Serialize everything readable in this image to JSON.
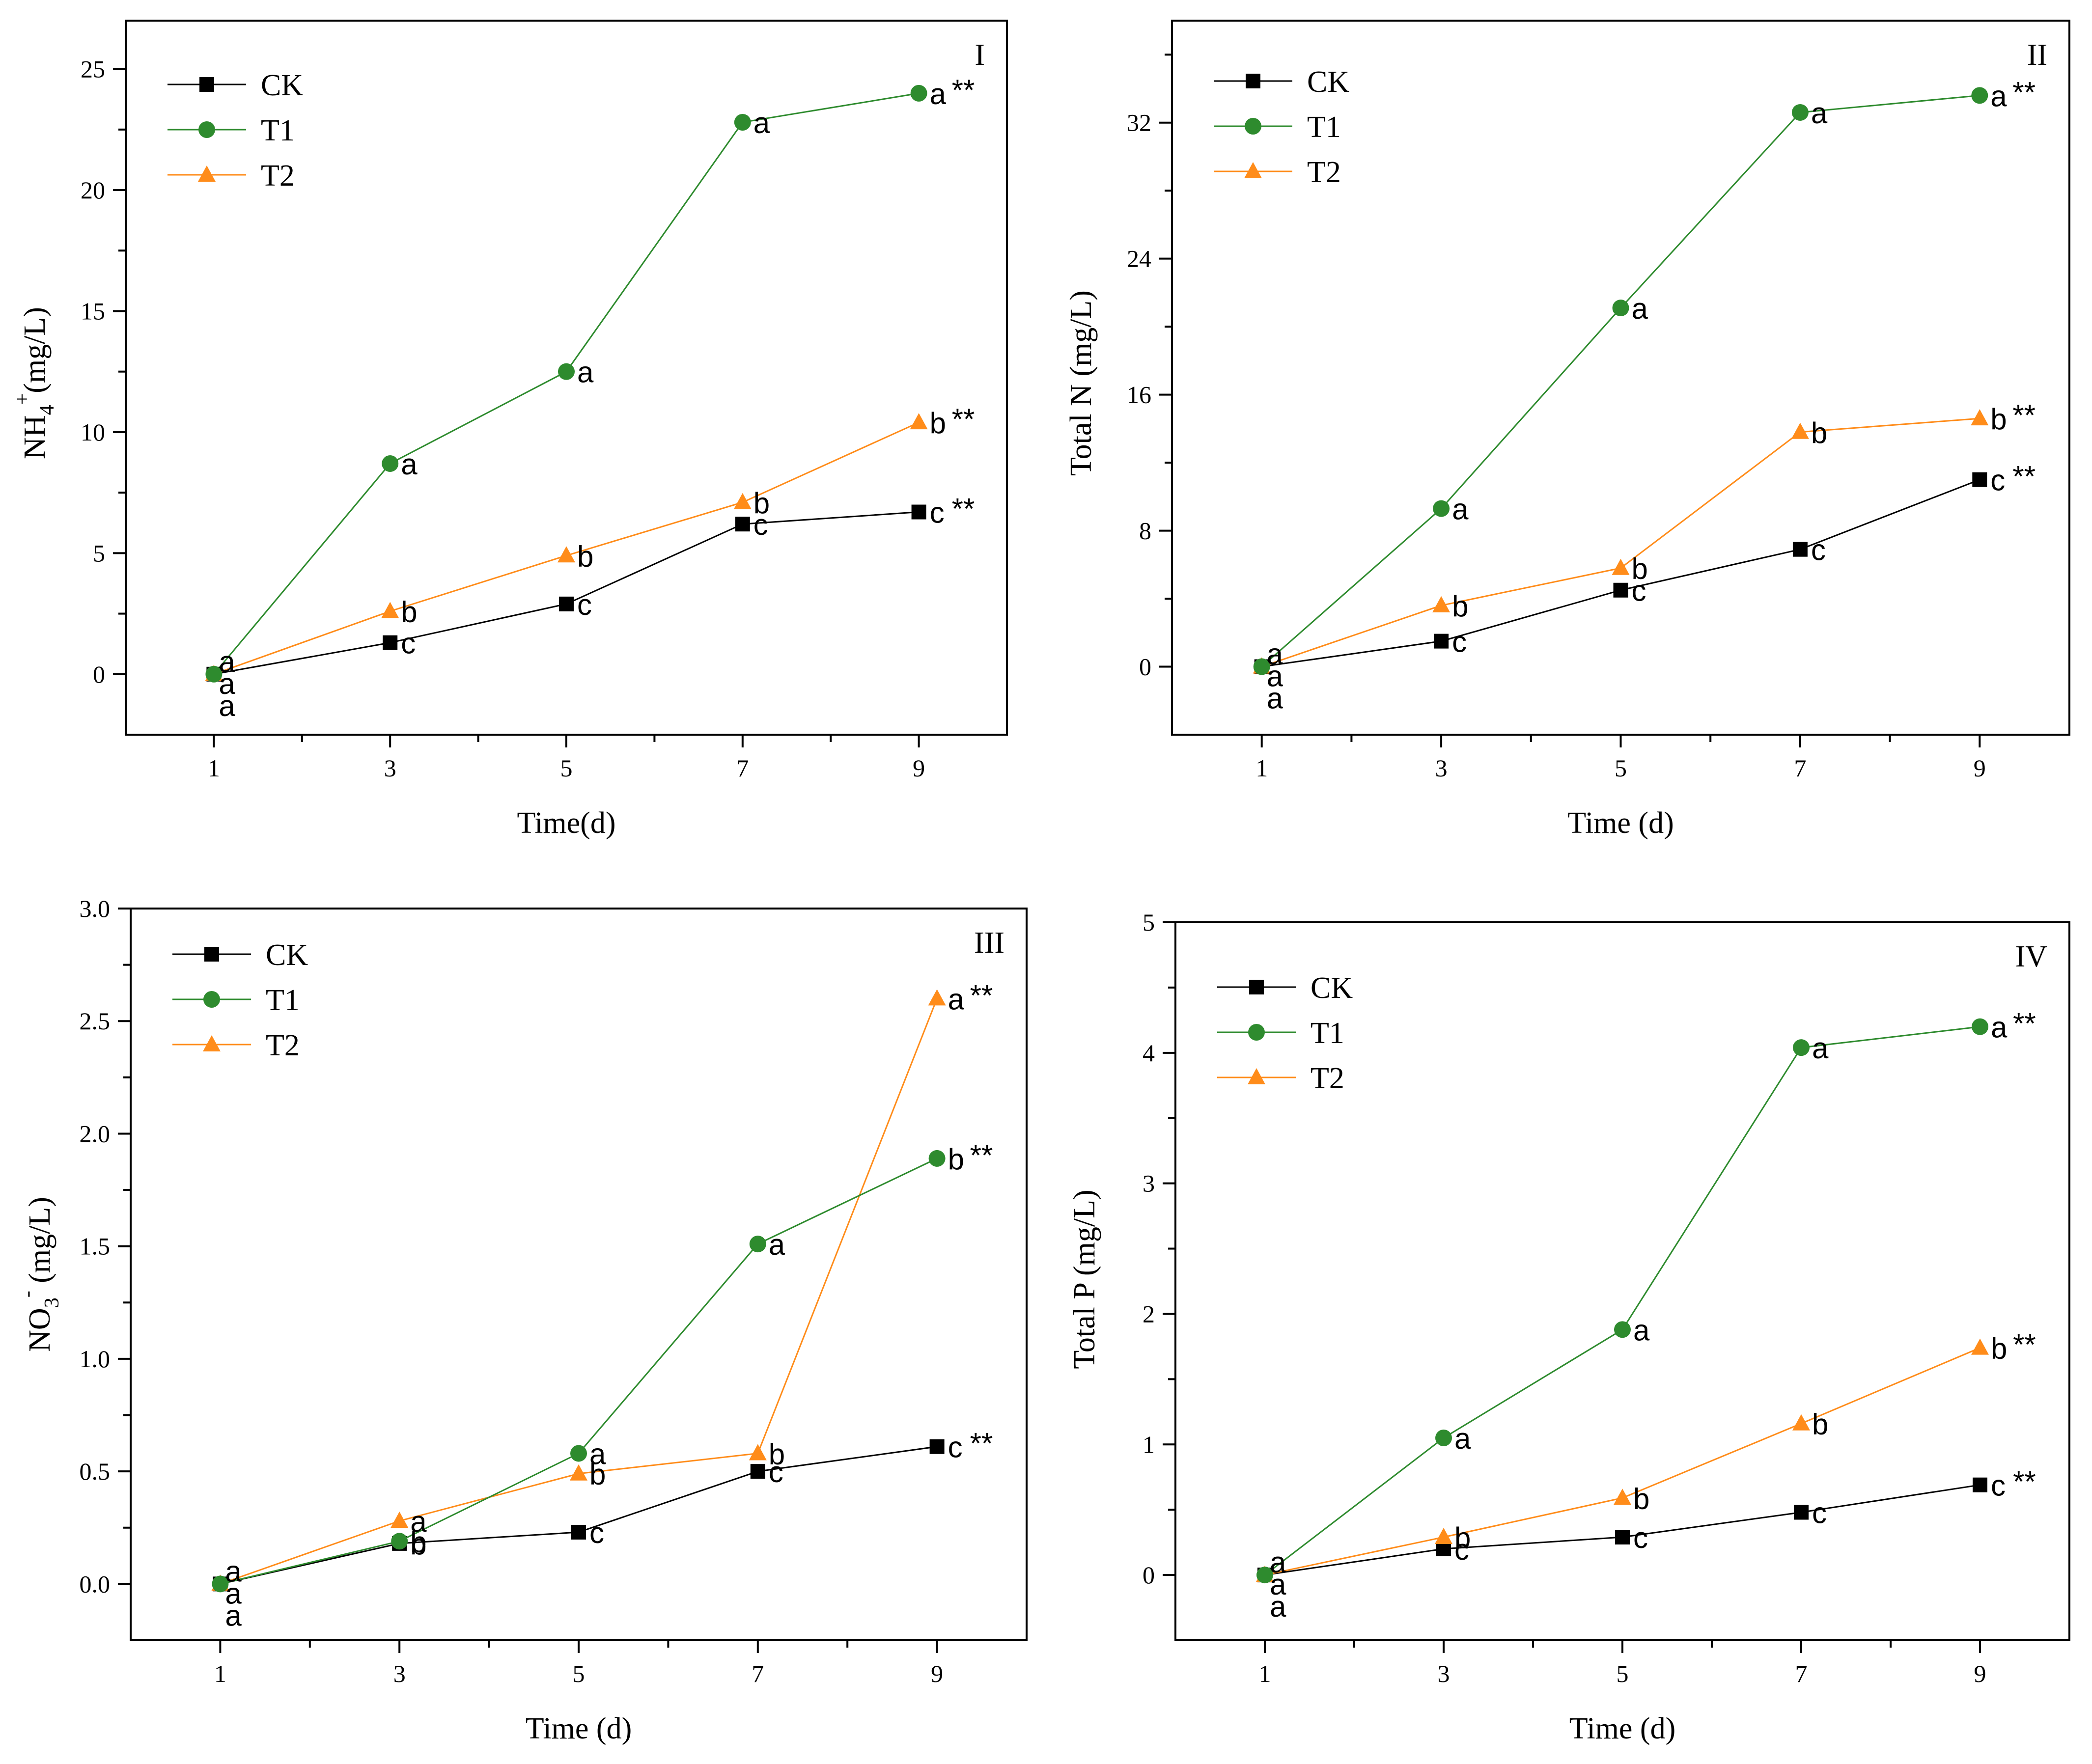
{
  "chart_data": [
    {
      "type": "line",
      "panel_label": "I",
      "xlabel": "Time(d)",
      "ylabel": "NH4+(mg/L)",
      "ylabel_main": "NH",
      "ylabel_sub": "4",
      "ylabel_sup": "+",
      "ylabel_tail": "(mg/L)",
      "x": [
        1,
        3,
        5,
        7,
        9
      ],
      "x_ticks": [
        "1",
        "3",
        "5",
        "7",
        "9"
      ],
      "xlim": [
        0,
        10
      ],
      "ylim": [
        -2.5,
        27
      ],
      "y_ticks": [
        0,
        5,
        10,
        15,
        20,
        25
      ],
      "y_tick_labels": [
        "0",
        "5",
        "10",
        "15",
        "20",
        "25"
      ],
      "legend": [
        "CK",
        "T1",
        "T2"
      ],
      "legend_position": "top-left",
      "series": [
        {
          "name": "CK",
          "color": "#000000",
          "marker": "square",
          "values": [
            0.0,
            1.3,
            2.9,
            6.2,
            6.7
          ],
          "letters": [
            "a",
            "c",
            "c",
            "c",
            "c"
          ],
          "stars": [
            "",
            "",
            "",
            "",
            "**"
          ]
        },
        {
          "name": "T1",
          "color": "#2e8b2e",
          "marker": "circle",
          "values": [
            0.0,
            8.7,
            12.5,
            22.8,
            24.0
          ],
          "letters": [
            "a",
            "a",
            "a",
            "a",
            "a"
          ],
          "stars": [
            "",
            "",
            "",
            "",
            "**"
          ]
        },
        {
          "name": "T2",
          "color": "#ff8c1a",
          "marker": "triangle",
          "values": [
            0.0,
            2.6,
            4.9,
            7.1,
            10.4
          ],
          "letters": [
            "a",
            "b",
            "b",
            "b",
            "b"
          ],
          "stars": [
            "",
            "",
            "",
            "",
            "**"
          ]
        }
      ]
    },
    {
      "type": "line",
      "panel_label": "II",
      "xlabel": "Time (d)",
      "ylabel": "Total N (mg/L)",
      "ylabel_main": "Total N (mg/L)",
      "ylabel_sub": "",
      "ylabel_sup": "",
      "ylabel_tail": "",
      "x": [
        1,
        3,
        5,
        7,
        9
      ],
      "x_ticks": [
        "1",
        "3",
        "5",
        "7",
        "9"
      ],
      "xlim": [
        0,
        10
      ],
      "ylim": [
        -4,
        38
      ],
      "y_ticks": [
        0,
        8,
        16,
        24,
        32
      ],
      "y_tick_labels": [
        "0",
        "8",
        "16",
        "24",
        "32"
      ],
      "legend": [
        "CK",
        "T1",
        "T2"
      ],
      "legend_position": "top-left",
      "series": [
        {
          "name": "CK",
          "color": "#000000",
          "marker": "square",
          "values": [
            0.0,
            1.5,
            4.5,
            6.9,
            11.0
          ],
          "letters": [
            "a",
            "c",
            "c",
            "c",
            "c"
          ],
          "stars": [
            "",
            "",
            "",
            "",
            "**"
          ]
        },
        {
          "name": "T1",
          "color": "#2e8b2e",
          "marker": "circle",
          "values": [
            0.0,
            9.3,
            21.1,
            32.6,
            33.6
          ],
          "letters": [
            "a",
            "a",
            "a",
            "a",
            "a"
          ],
          "stars": [
            "",
            "",
            "",
            "",
            "**"
          ]
        },
        {
          "name": "T2",
          "color": "#ff8c1a",
          "marker": "triangle",
          "values": [
            0.0,
            3.6,
            5.8,
            13.8,
            14.6
          ],
          "letters": [
            "a",
            "b",
            "b",
            "b",
            "b"
          ],
          "stars": [
            "",
            "",
            "",
            "",
            "**"
          ]
        }
      ]
    },
    {
      "type": "line",
      "panel_label": "III",
      "xlabel": "Time (d)",
      "ylabel": "NO3- (mg/L)",
      "ylabel_main": "NO",
      "ylabel_sub": "3",
      "ylabel_sup": "-",
      "ylabel_tail": " (mg/L)",
      "x": [
        1,
        3,
        5,
        7,
        9
      ],
      "x_ticks": [
        "1",
        "3",
        "5",
        "7",
        "9"
      ],
      "xlim": [
        0,
        10
      ],
      "ylim": [
        -0.25,
        3.0
      ],
      "y_ticks": [
        0.0,
        0.5,
        1.0,
        1.5,
        2.0,
        2.5,
        3.0
      ],
      "y_tick_labels": [
        "0.0",
        "0.5",
        "1.0",
        "1.5",
        "2.0",
        "2.5",
        "3.0"
      ],
      "legend": [
        "CK",
        "T1",
        "T2"
      ],
      "legend_position": "top-left",
      "series": [
        {
          "name": "CK",
          "color": "#000000",
          "marker": "square",
          "values": [
            0.0,
            0.18,
            0.23,
            0.5,
            0.61
          ],
          "letters": [
            "a",
            "b",
            "c",
            "c",
            "c"
          ],
          "stars": [
            "",
            "",
            "",
            "",
            "**"
          ]
        },
        {
          "name": "T1",
          "color": "#2e8b2e",
          "marker": "circle",
          "values": [
            0.0,
            0.19,
            0.58,
            1.51,
            1.89
          ],
          "letters": [
            "a",
            "b",
            "a",
            "a",
            "b"
          ],
          "stars": [
            "",
            "",
            "",
            "",
            "**"
          ]
        },
        {
          "name": "T2",
          "color": "#ff8c1a",
          "marker": "triangle",
          "values": [
            0.0,
            0.28,
            0.49,
            0.58,
            2.6
          ],
          "letters": [
            "a",
            "a",
            "b",
            "b",
            "a"
          ],
          "stars": [
            "",
            "",
            "",
            "",
            "**"
          ]
        }
      ]
    },
    {
      "type": "line",
      "panel_label": "IV",
      "xlabel": "Time (d)",
      "ylabel": "Total P (mg/L)",
      "ylabel_main": "Total P (mg/L)",
      "ylabel_sub": "",
      "ylabel_sup": "",
      "ylabel_tail": "",
      "x": [
        1,
        3,
        5,
        7,
        9
      ],
      "x_ticks": [
        "1",
        "3",
        "5",
        "7",
        "9"
      ],
      "xlim": [
        0,
        10
      ],
      "ylim": [
        -0.5,
        5.0
      ],
      "y_ticks": [
        0,
        1,
        2,
        3,
        4,
        5
      ],
      "y_tick_labels": [
        "0",
        "1",
        "2",
        "3",
        "4",
        "5"
      ],
      "legend": [
        "CK",
        "T1",
        "T2"
      ],
      "legend_position": "top-left",
      "series": [
        {
          "name": "CK",
          "color": "#000000",
          "marker": "square",
          "values": [
            0.0,
            0.2,
            0.29,
            0.48,
            0.69
          ],
          "letters": [
            "a",
            "c",
            "c",
            "c",
            "c"
          ],
          "stars": [
            "",
            "",
            "",
            "",
            "**"
          ]
        },
        {
          "name": "T1",
          "color": "#2e8b2e",
          "marker": "circle",
          "values": [
            0.0,
            1.05,
            1.88,
            4.04,
            4.2
          ],
          "letters": [
            "a",
            "a",
            "a",
            "a",
            "a"
          ],
          "stars": [
            "",
            "",
            "",
            "",
            "**"
          ]
        },
        {
          "name": "T2",
          "color": "#ff8c1a",
          "marker": "triangle",
          "values": [
            0.0,
            0.29,
            0.59,
            1.16,
            1.74
          ],
          "letters": [
            "a",
            "b",
            "b",
            "b",
            "b"
          ],
          "stars": [
            "",
            "",
            "",
            "",
            "**"
          ]
        }
      ]
    }
  ]
}
